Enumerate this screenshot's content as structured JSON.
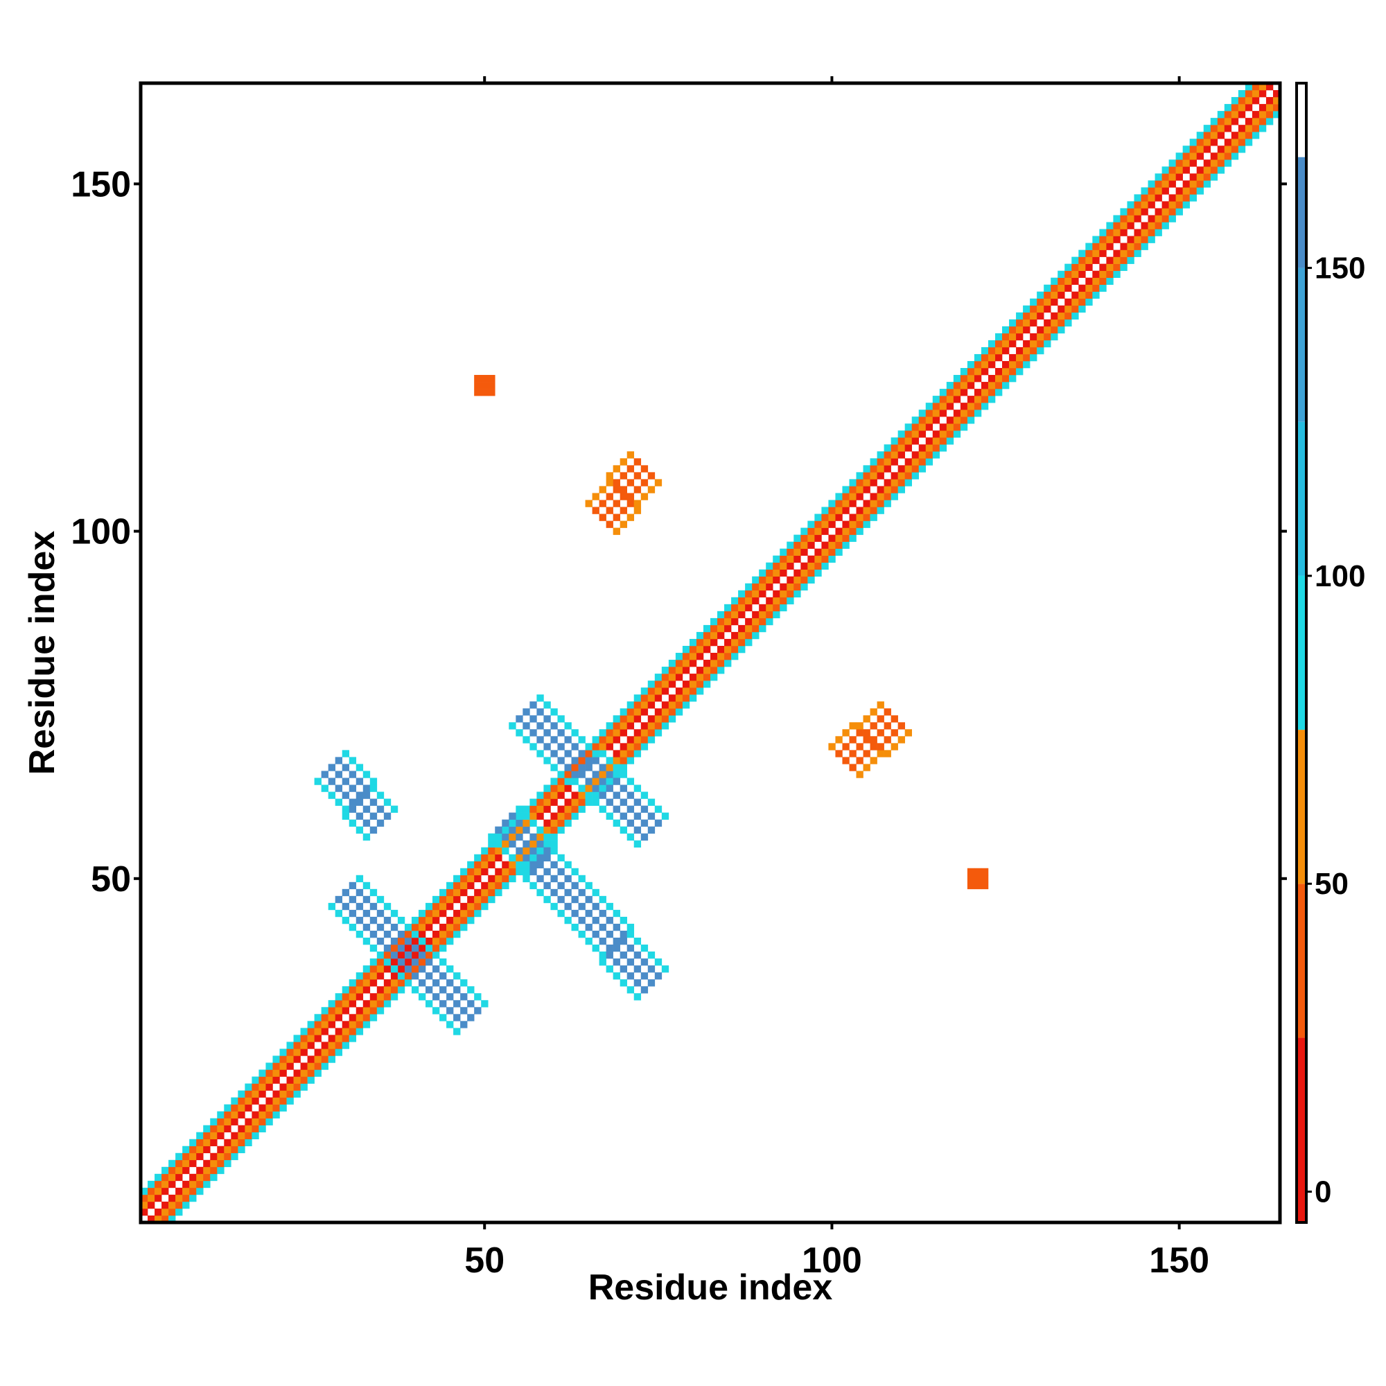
{
  "chart_data": {
    "type": "heatmap",
    "title": "",
    "xlabel": "Residue index",
    "ylabel": "Residue index",
    "xlim": [
      0.5,
      164.5
    ],
    "ylim": [
      0.5,
      164.5
    ],
    "x_ticks": [
      50,
      100,
      150
    ],
    "y_ticks": [
      50,
      100,
      150
    ],
    "x_tick_labels": [
      "50",
      "100",
      "150"
    ],
    "y_tick_labels": [
      "50",
      "100",
      "150"
    ],
    "grid": false,
    "colorbar": {
      "range": [
        -5,
        180
      ],
      "ticks": [
        0,
        50,
        100,
        150
      ],
      "tick_labels": [
        "0",
        "50",
        "100",
        "150"
      ],
      "bands": [
        {
          "from": -5,
          "to": 25,
          "color": "#e8170e"
        },
        {
          "from": 25,
          "to": 50,
          "color": "#f45a0c"
        },
        {
          "from": 50,
          "to": 75,
          "color": "#f58e0a"
        },
        {
          "from": 75,
          "to": 100,
          "color": "#1fd8e4"
        },
        {
          "from": 100,
          "to": 125,
          "color": "#27bde0"
        },
        {
          "from": 125,
          "to": 150,
          "color": "#3fa3d6"
        },
        {
          "from": 150,
          "to": 168,
          "color": "#4a8cc8"
        },
        {
          "from": 168,
          "to": 180,
          "color": "#ffffff"
        }
      ]
    },
    "regions": [
      {
        "name": "diagonal",
        "kind": "diagonal",
        "start": 1,
        "end": 164,
        "halfwidth": 4
      },
      {
        "name": "antiparallel-sheet-1",
        "kind": "antidiag",
        "from": [
          30,
          48
        ],
        "to": [
          48,
          30
        ],
        "halfwidth": 2,
        "value": 155
      },
      {
        "name": "antiparallel-sheet-2",
        "kind": "antidiag",
        "from": [
          53,
          58
        ],
        "to": [
          74,
          35
        ],
        "halfwidth": 2,
        "value": 150
      },
      {
        "name": "antiparallel-sheet-3",
        "kind": "antidiag",
        "from": [
          56,
          74
        ],
        "to": [
          74,
          57
        ],
        "halfwidth": 2,
        "value": 155
      },
      {
        "name": "antiparallel-sheet-4",
        "kind": "antidiag",
        "from": [
          28,
          66
        ],
        "to": [
          35,
          58
        ],
        "halfwidth": 2,
        "value": 155
      },
      {
        "name": "parallel-contact-1",
        "kind": "diagband",
        "from": [
          67,
          102
        ],
        "to": [
          73,
          109
        ],
        "halfwidth": 2,
        "value": 35
      },
      {
        "name": "parallel-contact-2",
        "kind": "diagband",
        "from": [
          102,
          67
        ],
        "to": [
          109,
          73
        ],
        "halfwidth": 2,
        "value": 35
      },
      {
        "name": "contact-cluster-1",
        "kind": "patch",
        "x": [
          49,
          51
        ],
        "y": [
          120,
          122
        ],
        "value": 40
      },
      {
        "name": "contact-cluster-2",
        "kind": "patch",
        "x": [
          120,
          122
        ],
        "y": [
          49,
          51
        ],
        "value": 40
      }
    ]
  }
}
